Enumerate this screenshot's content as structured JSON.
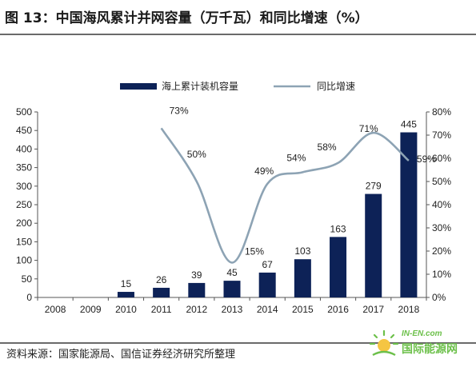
{
  "figure": {
    "title": "图 13：中国海风累计并网容量（万千瓦）和同比增速（%）",
    "source": "资料来源：国家能源局、国信证券经济研究所整理"
  },
  "watermark": {
    "url": "IN-EN.com",
    "name": "国际能源网",
    "icon": "sun-logo-icon"
  },
  "colors": {
    "bar": "#0d2257",
    "line": "#8da3b4",
    "axis": "#555555",
    "watermark": "#6cc04a"
  },
  "chart_data": {
    "type": "bar",
    "categories": [
      "2008",
      "2009",
      "2010",
      "2011",
      "2012",
      "2013",
      "2014",
      "2015",
      "2016",
      "2017",
      "2018"
    ],
    "series": [
      {
        "name": "海上累计装机容量",
        "type": "bar",
        "axis": "left",
        "values": [
          null,
          null,
          15,
          26,
          39,
          45,
          67,
          103,
          163,
          279,
          445
        ],
        "labels": [
          "",
          "",
          "15",
          "26",
          "39",
          "45",
          "67",
          "103",
          "163",
          "279",
          "445"
        ]
      },
      {
        "name": "同比增速",
        "type": "line",
        "axis": "right",
        "smooth": true,
        "values": [
          null,
          null,
          null,
          73,
          50,
          15,
          49,
          54,
          58,
          71,
          59
        ],
        "labels": [
          "",
          "",
          "",
          "73%",
          "50%",
          "15%",
          "49%",
          "54%",
          "58%",
          "71%",
          "59%"
        ]
      }
    ],
    "yleft": {
      "min": 0,
      "max": 500,
      "step": 50,
      "ticks": [
        "0",
        "50",
        "100",
        "150",
        "200",
        "250",
        "300",
        "350",
        "400",
        "450",
        "500"
      ]
    },
    "yright": {
      "min": 0,
      "max": 80,
      "step": 10,
      "ticks": [
        "0%",
        "10%",
        "20%",
        "30%",
        "40%",
        "50%",
        "60%",
        "70%",
        "80%"
      ]
    },
    "legend": {
      "position": "top-center"
    },
    "grid": false
  }
}
